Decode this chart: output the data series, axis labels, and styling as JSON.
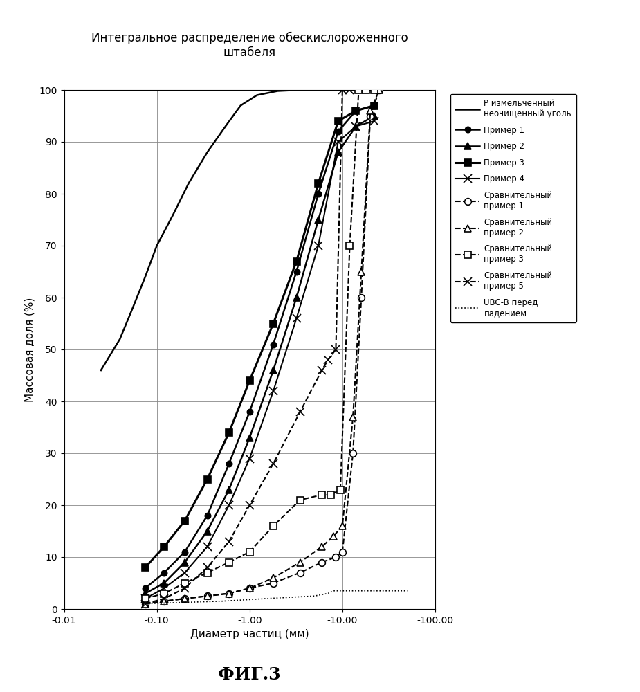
{
  "title": "Интегральное распределение обескислороженного\nштабеля",
  "xlabel": "Диаметр частиц (мм)",
  "ylabel": "Массовая доля (%)",
  "fig_label": "ФИГ.3",
  "xlim": [
    0.01,
    100
  ],
  "ylim": [
    0,
    100
  ],
  "xticks": [
    0.01,
    0.1,
    1.0,
    10.0,
    100.0
  ],
  "xtick_labels": [
    "-0.01",
    "-0.10",
    "-1.00",
    "-10.00",
    "-100.00"
  ],
  "yticks": [
    0,
    10,
    20,
    30,
    40,
    50,
    60,
    70,
    80,
    90,
    100
  ],
  "series": {
    "P_raw": {
      "x": [
        0.025,
        0.04,
        0.055,
        0.075,
        0.1,
        0.15,
        0.22,
        0.35,
        0.55,
        0.8,
        1.2,
        2.0,
        3.5
      ],
      "y": [
        46,
        52,
        58,
        64,
        70,
        76,
        82,
        88,
        93,
        97,
        99,
        99.8,
        100
      ],
      "color": "#000000",
      "linestyle": "-",
      "linewidth": 1.8,
      "marker": null,
      "label": "Р измельченный\nнеочищенный уголь"
    },
    "ex1": {
      "x": [
        0.075,
        0.12,
        0.2,
        0.35,
        0.6,
        1.0,
        1.8,
        3.2,
        5.5,
        9.0,
        14.0,
        22.0
      ],
      "y": [
        4,
        7,
        11,
        18,
        28,
        38,
        51,
        65,
        80,
        92,
        96,
        97
      ],
      "color": "#000000",
      "linestyle": "-",
      "linewidth": 1.8,
      "marker": "o",
      "markersize": 6,
      "mfc": "black",
      "label": "Пример 1"
    },
    "ex2": {
      "x": [
        0.075,
        0.12,
        0.2,
        0.35,
        0.6,
        1.0,
        1.8,
        3.2,
        5.5,
        9.0,
        14.0,
        22.0
      ],
      "y": [
        3,
        5,
        9,
        15,
        23,
        33,
        46,
        60,
        75,
        88,
        93,
        95
      ],
      "color": "#000000",
      "linestyle": "-",
      "linewidth": 1.8,
      "marker": "^",
      "markersize": 7,
      "mfc": "black",
      "label": "Пример 2"
    },
    "ex3": {
      "x": [
        0.075,
        0.12,
        0.2,
        0.35,
        0.6,
        1.0,
        1.8,
        3.2,
        5.5,
        9.0,
        14.0,
        22.0
      ],
      "y": [
        8,
        12,
        17,
        25,
        34,
        44,
        55,
        67,
        82,
        94,
        96,
        97
      ],
      "color": "#000000",
      "linestyle": "-",
      "linewidth": 2.2,
      "marker": "s",
      "markersize": 7,
      "mfc": "black",
      "label": "Пример 3"
    },
    "ex4": {
      "x": [
        0.075,
        0.12,
        0.2,
        0.35,
        0.6,
        1.0,
        1.8,
        3.2,
        5.5,
        9.0,
        14.0,
        22.0
      ],
      "y": [
        2,
        4,
        7,
        12,
        20,
        29,
        42,
        56,
        70,
        90,
        93,
        94
      ],
      "color": "#000000",
      "linestyle": "-",
      "linewidth": 1.5,
      "marker": "x",
      "markersize": 8,
      "mfc": "black",
      "label": "Пример 4"
    },
    "comp1": {
      "x": [
        0.075,
        0.12,
        0.2,
        0.35,
        0.6,
        1.0,
        1.8,
        3.5,
        6.0,
        8.5,
        10.0,
        13.0,
        16.0,
        20.0,
        25.0
      ],
      "y": [
        1,
        1.5,
        2,
        2.5,
        3,
        4,
        5,
        7,
        9,
        10,
        11,
        30,
        60,
        95,
        100
      ],
      "color": "#000000",
      "linestyle": "--",
      "linewidth": 1.5,
      "marker": "o",
      "markersize": 7,
      "mfc": "white",
      "label": "Сравнительный\nпример 1"
    },
    "comp2": {
      "x": [
        0.075,
        0.12,
        0.2,
        0.35,
        0.6,
        1.0,
        1.8,
        3.5,
        6.0,
        8.0,
        10.0,
        13.0,
        16.0,
        20.0,
        25.0
      ],
      "y": [
        1,
        1.5,
        2,
        2.5,
        3,
        4,
        6,
        9,
        12,
        14,
        16,
        37,
        65,
        96,
        100
      ],
      "color": "#000000",
      "linestyle": "--",
      "linewidth": 1.5,
      "marker": "^",
      "markersize": 7,
      "mfc": "white",
      "label": "Сравнительный\nпример 2"
    },
    "comp3": {
      "x": [
        0.075,
        0.12,
        0.2,
        0.35,
        0.6,
        1.0,
        1.8,
        3.5,
        6.0,
        7.5,
        9.5,
        12.0,
        15.0,
        18.0,
        22.0
      ],
      "y": [
        2,
        3,
        5,
        7,
        9,
        11,
        16,
        21,
        22,
        22,
        23,
        70,
        100,
        100,
        100
      ],
      "color": "#000000",
      "linestyle": "--",
      "linewidth": 1.5,
      "marker": "s",
      "markersize": 7,
      "mfc": "white",
      "label": "Сравнительный\nпример 3"
    },
    "comp5": {
      "x": [
        0.075,
        0.12,
        0.2,
        0.35,
        0.6,
        1.0,
        1.8,
        3.5,
        6.0,
        7.0,
        8.5,
        10.0,
        12.0
      ],
      "y": [
        1,
        2,
        4,
        8,
        13,
        20,
        28,
        38,
        46,
        48,
        50,
        100,
        100
      ],
      "color": "#000000",
      "linestyle": "--",
      "linewidth": 1.5,
      "marker": "x",
      "markersize": 8,
      "mfc": "black",
      "label": "Сравнительный\nпример 5"
    },
    "ubc": {
      "x": [
        0.075,
        0.15,
        0.5,
        1.5,
        5.0,
        7.0,
        8.0,
        9.5,
        50.0
      ],
      "y": [
        1,
        1.2,
        1.5,
        2.0,
        2.5,
        3.0,
        3.5,
        3.5,
        3.5
      ],
      "color": "#000000",
      "linestyle": ":",
      "linewidth": 1.2,
      "marker": null,
      "label": "UBC-B перед\nпадением"
    }
  }
}
